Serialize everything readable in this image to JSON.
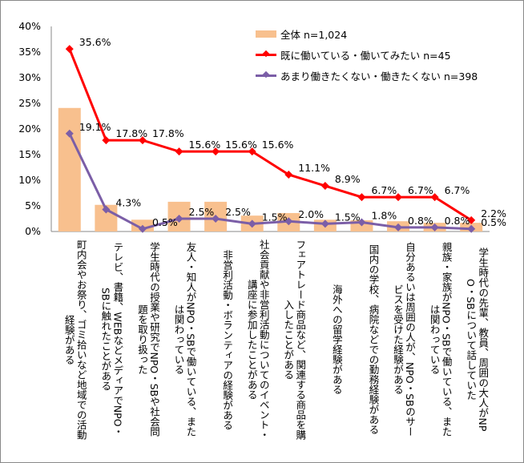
{
  "chart_data": {
    "type": "bar+line",
    "ylim": [
      0,
      40
    ],
    "yticks": [
      "0%",
      "5%",
      "10%",
      "15%",
      "20%",
      "25%",
      "30%",
      "35%",
      "40%"
    ],
    "grid": false,
    "legend_position": "top-right",
    "categories": [
      "町内会やお祭り、ゴミ拾いなど地域での活動経験がある",
      "テレビ、書籍、WEBなどメディアでNPO・SBに触れたことがある",
      "学生時代の授業や研究でNPO・SBや社会問題を取り扱った",
      "友人・知人がNPO・SBで働いている、または関わっている",
      "非営利活動・ボランティアの経験がある",
      "社会貢献や非営利活動についてのイベント・講座に参加したことがある",
      "フェアトレード商品など、関連する商品を購入したことがある",
      "海外への留学経験がある",
      "国内の学校、病院などでの勤務経験がある",
      "自分あるいは周囲の人が、NPO・SBのサービスを受けた経験がある",
      "親族・家族がNPO・SBで働いている、または関わっている",
      "学生時代の先輩、教員、周囲の大人がNPO・SBについて話していた"
    ],
    "series": [
      {
        "name": "全体 n=1,024",
        "kind": "bar",
        "color": "#F8C08E",
        "values": [
          24.1,
          5.2,
          2.3,
          5.8,
          5.8,
          3.1,
          3.6,
          2.3,
          2.2,
          2.0,
          1.7,
          1.7
        ]
      },
      {
        "name": "既に働いている・働いてみたい n=45",
        "kind": "line",
        "color": "#FF0000",
        "values": [
          35.6,
          17.8,
          17.8,
          15.6,
          15.6,
          15.6,
          11.1,
          8.9,
          6.7,
          6.7,
          6.7,
          2.2
        ],
        "labels": [
          "35.6%",
          "17.8%",
          "17.8%",
          "15.6%",
          "15.6%",
          "15.6%",
          "11.1%",
          "8.9%",
          "6.7%",
          "6.7%",
          "6.7%",
          "2.2%"
        ]
      },
      {
        "name": "あまり働きたくない・働きたくない n=398",
        "kind": "line",
        "color": "#7B5EA7",
        "values": [
          19.1,
          4.3,
          0.5,
          2.5,
          2.5,
          1.5,
          2.0,
          1.5,
          1.8,
          0.8,
          0.8,
          0.5
        ],
        "labels": [
          "19.1%",
          "4.3%",
          "0.5%",
          "2.5%",
          "2.5%",
          "1.5%",
          "2.0%",
          "1.5%",
          "1.8%",
          "0.8%",
          "0.8%",
          "0.5%"
        ]
      }
    ]
  }
}
